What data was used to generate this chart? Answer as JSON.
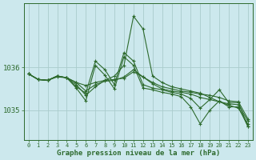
{
  "title": "Graphe pression niveau de la mer (hPa)",
  "bg_color": "#cce8ed",
  "grid_color": "#aacccc",
  "line_color": "#2d6a2d",
  "xlim": [
    -0.5,
    23.5
  ],
  "ylim": [
    1034.3,
    1037.5
  ],
  "yticks": [
    1035,
    1036
  ],
  "ytick_fontsize": 6.5,
  "xtick_fontsize": 5.0,
  "xlabel_fontsize": 6.5,
  "series": [
    [
      1035.85,
      1035.72,
      1035.7,
      1035.78,
      1035.76,
      1035.65,
      1035.58,
      1035.65,
      1035.7,
      1035.72,
      1035.75,
      1035.9,
      1035.78,
      1035.65,
      1035.55,
      1035.5,
      1035.45,
      1035.42,
      1035.38,
      1035.35,
      1035.3,
      1035.22,
      1035.2,
      1034.8
    ],
    [
      1035.85,
      1035.72,
      1035.7,
      1035.8,
      1035.76,
      1035.65,
      1035.45,
      1035.6,
      1035.68,
      1035.7,
      1035.78,
      1035.95,
      1035.78,
      1035.62,
      1035.5,
      1035.45,
      1035.42,
      1035.38,
      1035.3,
      1035.25,
      1035.2,
      1035.15,
      1035.13,
      1034.75
    ],
    [
      1035.85,
      1035.72,
      1035.7,
      1035.8,
      1035.76,
      1035.6,
      1035.35,
      1035.55,
      1035.7,
      1035.8,
      1036.05,
      1037.2,
      1036.9,
      1035.8,
      1035.65,
      1035.55,
      1035.5,
      1035.45,
      1035.4,
      1035.3,
      1035.2,
      1035.12,
      1035.05,
      1034.68
    ],
    [
      1035.85,
      1035.72,
      1035.7,
      1035.8,
      1035.76,
      1035.52,
      1035.22,
      1036.05,
      1035.82,
      1035.5,
      1036.25,
      1036.05,
      1035.52,
      1035.48,
      1035.42,
      1035.38,
      1035.32,
      1035.08,
      1034.68,
      1035.0,
      1035.22,
      1035.08,
      1035.08,
      1034.62
    ],
    [
      1035.85,
      1035.72,
      1035.7,
      1035.8,
      1035.76,
      1035.55,
      1035.4,
      1036.15,
      1035.95,
      1035.6,
      1036.35,
      1036.15,
      1035.6,
      1035.52,
      1035.48,
      1035.42,
      1035.38,
      1035.28,
      1035.05,
      1035.25,
      1035.48,
      1035.18,
      1035.18,
      1034.62
    ]
  ]
}
